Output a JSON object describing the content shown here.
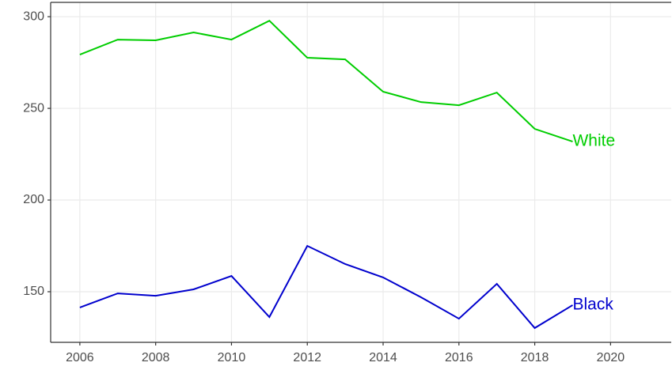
{
  "chart_data": {
    "type": "line",
    "x": [
      2006,
      2007,
      2008,
      2009,
      2010,
      2011,
      2012,
      2013,
      2014,
      2015,
      2016,
      2017,
      2018,
      2019
    ],
    "series": [
      {
        "name": "White",
        "color": "#00cd00",
        "values": [
          279.3,
          287.5,
          287.1,
          291.4,
          287.5,
          297.8,
          277.6,
          276.7,
          259.1,
          253.4,
          251.7,
          258.6,
          238.8,
          231.9
        ]
      },
      {
        "name": "Black",
        "color": "#0000cd",
        "values": [
          141.4,
          149.1,
          147.8,
          151.3,
          158.6,
          136.2,
          175.0,
          165.1,
          157.8,
          147.0,
          135.3,
          154.3,
          130.2,
          142.7
        ]
      }
    ],
    "xlim": [
      2005.23,
      2021.6
    ],
    "xticks": [
      2006,
      2008,
      2010,
      2012,
      2014,
      2016,
      2018,
      2020
    ],
    "ylim": [
      122.4,
      307.8
    ],
    "yticks": [
      150,
      200,
      250,
      300
    ],
    "grid": true
  }
}
